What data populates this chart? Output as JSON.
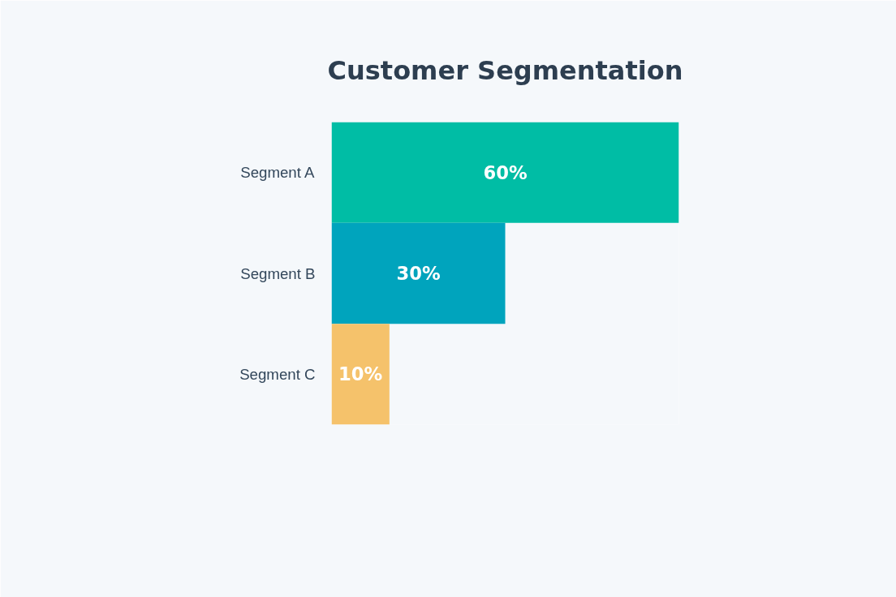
{
  "chart_data": {
    "type": "bar",
    "orientation": "horizontal",
    "title": "Customer Segmentation",
    "categories": [
      "Segment A",
      "Segment B",
      "Segment C"
    ],
    "values": [
      60,
      30,
      10
    ],
    "colors": [
      "#00bda5",
      "#00a4bd",
      "#f5c26b"
    ],
    "value_labels": [
      "60%",
      "30%",
      "10%"
    ],
    "grid": false
  }
}
